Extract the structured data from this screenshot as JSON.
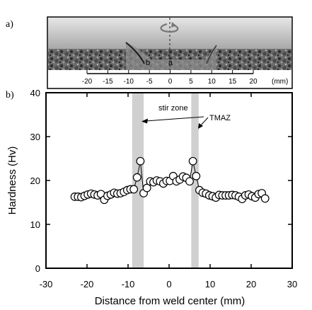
{
  "panels": {
    "a_label": "a)",
    "b_label": "b)"
  },
  "macrograph": {
    "region_b": "b",
    "region_a": "a",
    "scale_ticks": [
      "-20",
      "-15",
      "-10",
      "-5",
      "0",
      "5",
      "10",
      "15",
      "20"
    ],
    "scale_unit": "(mm)",
    "rotation_icon": "rotation-arrow-icon"
  },
  "chart_data": {
    "type": "scatter",
    "xlabel": "Distance from weld center (mm)",
    "ylabel": "Hardness (Hv)",
    "xlim": [
      -30,
      30
    ],
    "ylim": [
      0,
      40
    ],
    "xticks": [
      "-30",
      "-20",
      "-10",
      "0",
      "10",
      "20",
      "30"
    ],
    "yticks": [
      "0",
      "10",
      "20",
      "30",
      "40"
    ],
    "grid": false,
    "connected": true,
    "marker": "open-circle",
    "x": [
      -23,
      -22.2,
      -21.4,
      -20.6,
      -19.8,
      -19,
      -18.2,
      -17.4,
      -16.6,
      -15.8,
      -15,
      -14.2,
      -13.4,
      -12.6,
      -11.8,
      -11,
      -10.2,
      -9.4,
      -8.6,
      -7.8,
      -7,
      -6.2,
      -5.4,
      -4.6,
      -3.8,
      -3,
      -2.2,
      -1.4,
      -0.6,
      0.2,
      1,
      1.8,
      2.6,
      3.4,
      4.2,
      5,
      5.8,
      6.6,
      7.4,
      8.2,
      9,
      9.8,
      10.6,
      11.4,
      12.2,
      13,
      13.8,
      14.6,
      15.4,
      16.2,
      17,
      17.8,
      18.6,
      19.4,
      20.2,
      21,
      21.8,
      22.6,
      23.4
    ],
    "y": [
      16.3,
      16.3,
      16.2,
      16.5,
      16.8,
      17,
      16.8,
      16.6,
      16.9,
      15.6,
      16.5,
      16.8,
      17.2,
      17,
      17.1,
      17.4,
      17.8,
      18,
      18,
      20.7,
      24.4,
      17.1,
      18.3,
      19.8,
      19.6,
      20,
      19.8,
      19.3,
      19.9,
      19.9,
      21,
      19.8,
      20.2,
      20.9,
      20.6,
      19.8,
      24.4,
      21,
      17.8,
      17.2,
      17,
      16.6,
      16.4,
      16.1,
      16.7,
      16.6,
      16.6,
      16.6,
      16.7,
      16.6,
      16.3,
      15.8,
      16.6,
      16.8,
      16.4,
      16.1,
      16.9,
      17.1,
      15.9
    ],
    "bands": [
      {
        "from": -9,
        "to": -6.2
      },
      {
        "from": 5.4,
        "to": 7.2
      }
    ],
    "annotations": {
      "stir_zone": "stir zone",
      "tmaz": "TMAZ"
    }
  },
  "colors": {
    "band": "#d0d0d0",
    "axis": "#000000",
    "marker_fill": "#ffffff"
  }
}
